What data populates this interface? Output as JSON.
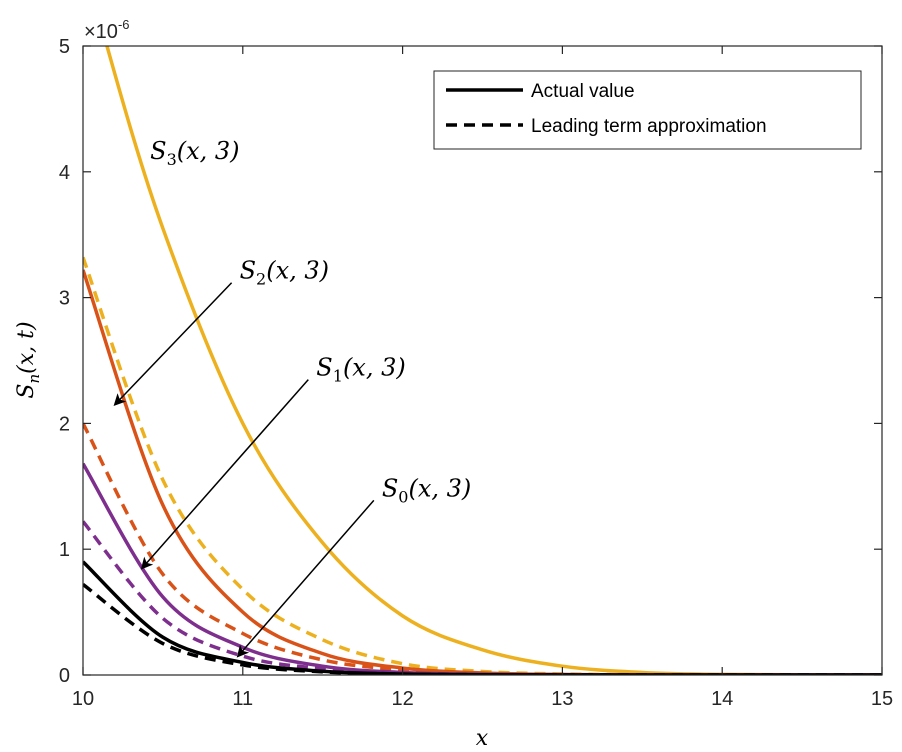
{
  "chart_data": {
    "type": "line",
    "xlabel": "x",
    "ylabel": "S_n(x,t)",
    "xlim": [
      10,
      15
    ],
    "ylim": [
      0,
      5e-06
    ],
    "x_ticks": [
      10,
      11,
      12,
      13,
      14,
      15
    ],
    "y_ticks": [
      0,
      1,
      2,
      3,
      4,
      5
    ],
    "y_exponent_label": "×10",
    "y_exponent_power": "-6",
    "y_multiplier": 1e-06,
    "grid": false,
    "legend_position": "top-right",
    "legend": [
      {
        "label": "Actual value",
        "style": "solid"
      },
      {
        "label": "Leading term approximation",
        "style": "dashed"
      }
    ],
    "series": [
      {
        "curve": "S3",
        "style": "solid",
        "color": "#EDB120",
        "x": [
          10.0,
          10.15,
          10.5,
          11.0,
          11.5,
          12.0,
          12.5,
          13.0,
          13.5,
          14.0,
          15.0
        ],
        "y": [
          5.8e-06,
          5e-06,
          3.55e-06,
          2e-06,
          1.05e-06,
          4.7e-07,
          2e-07,
          7e-08,
          2e-08,
          5e-09,
          0.0
        ]
      },
      {
        "curve": "S3",
        "style": "dashed",
        "color": "#EDB120",
        "x": [
          10.0,
          10.5,
          11.0,
          11.5,
          12.0,
          12.5,
          13.0,
          13.5,
          14.0,
          15.0
        ],
        "y": [
          3.32e-06,
          1.55e-06,
          6.8e-07,
          2.8e-07,
          9e-08,
          2.8e-08,
          8e-09,
          2e-09,
          0.0,
          0.0
        ]
      },
      {
        "curve": "S2",
        "style": "solid",
        "color": "#D95319",
        "x": [
          10.0,
          10.5,
          11.0,
          11.5,
          12.0,
          12.5,
          13.0,
          13.5,
          14.0,
          15.0
        ],
        "y": [
          3.22e-06,
          1.35e-06,
          5e-07,
          1.7e-07,
          5.5e-08,
          1.6e-08,
          4e-09,
          1e-09,
          0.0,
          0.0
        ]
      },
      {
        "curve": "S2",
        "style": "dashed",
        "color": "#D95319",
        "x": [
          10.0,
          10.5,
          11.0,
          11.5,
          12.0,
          12.5,
          13.0,
          13.5,
          14.0,
          15.0
        ],
        "y": [
          2e-06,
          8e-07,
          3.3e-07,
          1.2e-07,
          4e-08,
          1.2e-08,
          3e-09,
          0.0,
          0.0,
          0.0
        ]
      },
      {
        "curve": "S1",
        "style": "solid",
        "color": "#7E2F8E",
        "x": [
          10.0,
          10.5,
          11.0,
          11.5,
          12.0,
          12.5,
          13.0,
          13.5,
          14.0,
          15.0
        ],
        "y": [
          1.68e-06,
          6.2e-07,
          2.2e-07,
          7e-08,
          2e-08,
          5e-09,
          1e-09,
          0.0,
          0.0,
          0.0
        ]
      },
      {
        "curve": "S1",
        "style": "dashed",
        "color": "#7E2F8E",
        "x": [
          10.0,
          10.5,
          11.0,
          11.5,
          12.0,
          12.5,
          13.0,
          13.5,
          14.0,
          15.0
        ],
        "y": [
          1.22e-06,
          4.5e-07,
          1.5e-07,
          5e-08,
          1.5e-08,
          4e-09,
          1e-09,
          0.0,
          0.0,
          0.0
        ]
      },
      {
        "curve": "S0",
        "style": "solid",
        "color": "#000000",
        "x": [
          10.0,
          10.5,
          11.0,
          11.5,
          12.0,
          12.5,
          13.0,
          13.5,
          14.0,
          15.0
        ],
        "y": [
          9e-07,
          3e-07,
          1e-07,
          3e-08,
          8e-09,
          2e-09,
          0.0,
          0.0,
          0.0,
          0.0
        ]
      },
      {
        "curve": "S0",
        "style": "dashed",
        "color": "#000000",
        "x": [
          10.0,
          10.5,
          11.0,
          11.5,
          12.0,
          12.5,
          13.0,
          13.5,
          14.0,
          15.0
        ],
        "y": [
          7.2e-07,
          2.5e-07,
          8e-08,
          2.5e-08,
          7e-09,
          2e-09,
          0.0,
          0.0,
          0.0,
          0.0
        ]
      }
    ],
    "annotations": [
      {
        "name": "S3",
        "sym": "S",
        "sub": "3",
        "args": "(x, 3)",
        "x": 10.42,
        "y": 4.1e-06
      },
      {
        "name": "S2",
        "sym": "S",
        "sub": "2",
        "args": "(x, 3)",
        "x": 10.98,
        "y": 3.15e-06,
        "arrow_to": [
          10.2,
          2.15e-06
        ]
      },
      {
        "name": "S1",
        "sym": "S",
        "sub": "1",
        "args": "(x, 3)",
        "x": 11.46,
        "y": 2.38e-06,
        "arrow_to": [
          10.37,
          8.5e-07
        ]
      },
      {
        "name": "S0",
        "sym": "S",
        "sub": "0",
        "args": "(x, 3)",
        "x": 11.87,
        "y": 1.42e-06,
        "arrow_to": [
          10.97,
          1.5e-07
        ]
      }
    ]
  }
}
